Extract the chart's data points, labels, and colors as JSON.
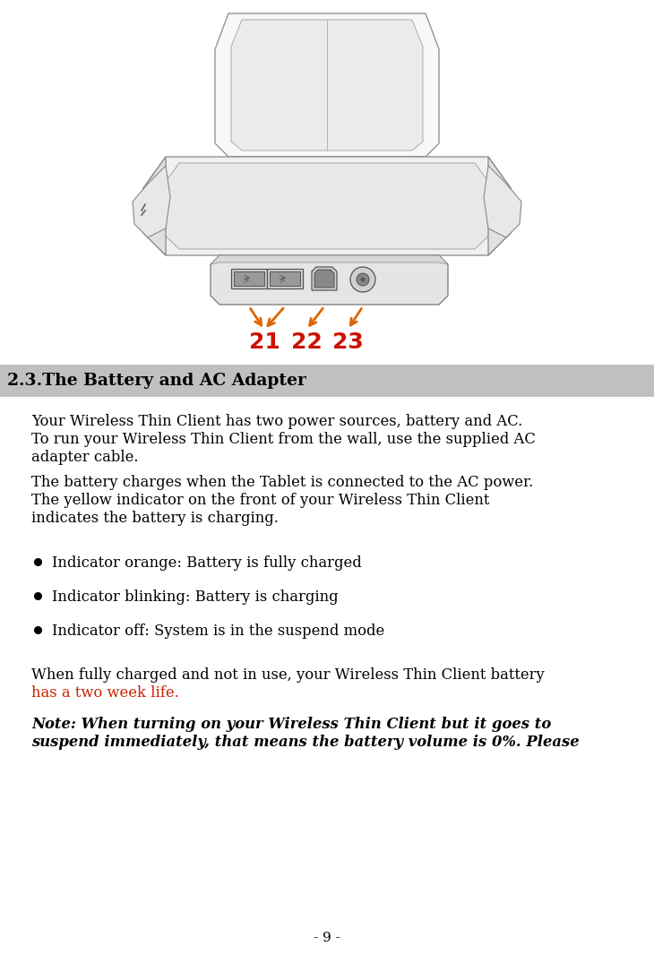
{
  "bg_color": "#ffffff",
  "header_bg": "#c0c0c0",
  "header_text": "2.3.The Battery and AC Adapter",
  "header_text_color": "#000000",
  "header_fontsize": 13.5,
  "body_fontsize": 11.8,
  "page_number": "- 9 -",
  "paragraph1_line1": "Your Wireless Thin Client has two power sources, battery and AC.",
  "paragraph1_line2": "To run your Wireless Thin Client from the wall, use the supplied AC",
  "paragraph1_line3": "adapter cable.",
  "paragraph2_line1": "The battery charges when the Tablet is connected to the AC power.",
  "paragraph2_line2": "The yellow indicator on the front of your Wireless Thin Client",
  "paragraph2_line3": "indicates the battery is charging.",
  "bullets": [
    "Indicator orange: Battery is fully charged",
    "Indicator blinking: Battery is charging",
    "Indicator off: System is in the suspend mode"
  ],
  "paragraph3_black": "When fully charged and not in use, your Wireless Thin Client battery",
  "paragraph3_red": "has a two week life.",
  "paragraph3_red_color": "#cc2200",
  "note_line1": "Note: When turning on your Wireless Thin Client but it goes to",
  "note_line2": "suspend immediately, that means the battery volume is 0%. Please",
  "arrow_color": "#dd6600",
  "label_color": "#cc1100",
  "labels": [
    "21",
    "22",
    "23"
  ],
  "device_color": "#f5f5f5",
  "device_edge": "#888888",
  "device_dark": "#cccccc"
}
